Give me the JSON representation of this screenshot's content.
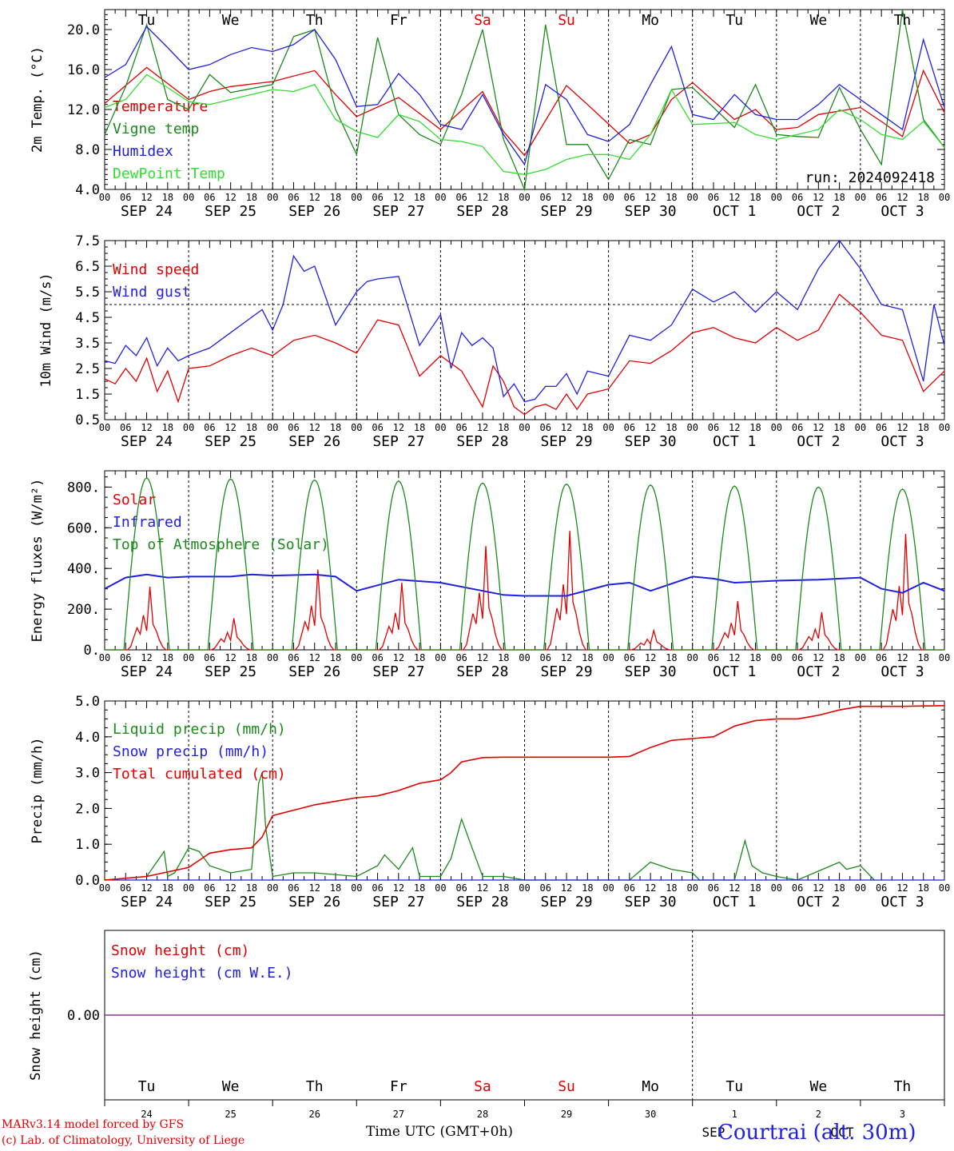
{
  "colors": {
    "red": "#e00000",
    "green": "#1a8a1a",
    "blue": "#2020e0",
    "lightgreen": "#33dd33",
    "purple": "#8030a0",
    "axis": "#000000"
  },
  "hours": [
    "00",
    "06",
    "12",
    "18"
  ],
  "days": [
    "SEP 24",
    "SEP 25",
    "SEP 26",
    "SEP 27",
    "SEP 28",
    "SEP 29",
    "SEP 30",
    "OCT  1",
    "OCT  2",
    "OCT  3"
  ],
  "final_hour": "00",
  "weekdays": [
    "Tu",
    "We",
    "Th",
    "Fr",
    "Sa",
    "Su",
    "Mo",
    "Tu",
    "We",
    "Th"
  ],
  "weekday_colors": [
    "#000000",
    "#000000",
    "#000000",
    "#000000",
    "#e00000",
    "#e00000",
    "#000000",
    "#000000",
    "#000000",
    "#000000"
  ],
  "daynums": [
    "24",
    "25",
    "26",
    "27",
    "28",
    "29",
    "30",
    "1",
    "2",
    "3"
  ],
  "footer": {
    "credit1": "MARv3.14 model forced by GFS",
    "credit2": "(c) Lab. of Climatology, University of Liege",
    "location": "Courtrai (alt. 30m)",
    "time_label": "Time UTC (GMT+0h)",
    "month1": "SEP",
    "month2": "OCT"
  },
  "chart_data": [
    {
      "type": "line",
      "ylabel": "2m Temp. (°C)",
      "ylim": [
        4.0,
        22.0
      ],
      "yticks": [
        "4.0",
        "8.0",
        "12.0",
        "16.0",
        "20.0"
      ],
      "run": "run: 2024092418",
      "series": [
        {
          "name": "Temperature",
          "color": "#e00000",
          "t": [
            0,
            12,
            24,
            30,
            36,
            48,
            60,
            66,
            72,
            84,
            96,
            108,
            114,
            120,
            132,
            138,
            150,
            156,
            162,
            168,
            180,
            186,
            192,
            198,
            204,
            216,
            222,
            228,
            234,
            240
          ],
          "v": [
            12.6,
            16.2,
            13.0,
            13.8,
            14.3,
            14.8,
            15.9,
            13.5,
            11.3,
            13.2,
            10.0,
            13.8,
            9.8,
            7.4,
            14.4,
            12.5,
            8.6,
            9.5,
            13.0,
            14.7,
            11.0,
            12.0,
            10.0,
            10.2,
            11.5,
            12.2,
            10.8,
            9.3,
            15.9,
            11.7
          ]
        },
        {
          "name": "Vigne temp",
          "color": "#1a8a1a",
          "t": [
            0,
            6,
            12,
            18,
            24,
            30,
            36,
            48,
            54,
            60,
            66,
            72,
            78,
            84,
            90,
            96,
            102,
            108,
            114,
            120,
            126,
            132,
            138,
            144,
            150,
            156,
            162,
            168,
            180,
            186,
            192,
            198,
            204,
            210,
            216,
            222,
            228,
            234,
            240
          ],
          "v": [
            9.5,
            14.3,
            20.5,
            13.0,
            12.0,
            15.5,
            13.7,
            14.5,
            19.3,
            20.0,
            12.0,
            7.5,
            19.2,
            11.5,
            9.5,
            8.5,
            13.5,
            20.0,
            9.0,
            4.0,
            20.5,
            8.5,
            8.5,
            5.0,
            9.0,
            8.5,
            14.0,
            14.2,
            10.2,
            14.5,
            9.5,
            9.3,
            9.2,
            14.2,
            10.0,
            6.5,
            22.0,
            11.0,
            8.2
          ]
        },
        {
          "name": "Humidex",
          "color": "#2020e0",
          "t": [
            0,
            6,
            12,
            18,
            24,
            30,
            36,
            42,
            48,
            54,
            60,
            66,
            72,
            78,
            84,
            90,
            96,
            102,
            108,
            114,
            120,
            126,
            132,
            138,
            144,
            150,
            156,
            162,
            168,
            174,
            180,
            186,
            192,
            198,
            204,
            210,
            216,
            222,
            228,
            234,
            240
          ],
          "v": [
            15.2,
            16.5,
            20.3,
            18.2,
            16.0,
            16.5,
            17.5,
            18.2,
            17.8,
            18.5,
            20.0,
            17.0,
            12.3,
            12.5,
            15.6,
            13.5,
            10.5,
            10.0,
            13.5,
            9.5,
            6.5,
            14.5,
            13.0,
            9.5,
            8.8,
            10.5,
            14.5,
            18.3,
            11.5,
            11.0,
            13.5,
            11.5,
            11.0,
            11.0,
            12.5,
            14.5,
            13.0,
            11.5,
            10.0,
            19.0,
            12.2
          ]
        },
        {
          "name": "DewPoint Temp",
          "color": "#33dd33",
          "t": [
            0,
            6,
            12,
            18,
            24,
            30,
            36,
            42,
            48,
            54,
            60,
            66,
            72,
            78,
            84,
            90,
            96,
            102,
            108,
            114,
            120,
            126,
            132,
            138,
            144,
            150,
            156,
            162,
            168,
            180,
            186,
            192,
            198,
            204,
            210,
            216,
            222,
            228,
            234,
            240
          ],
          "v": [
            12.2,
            13.0,
            15.5,
            14.2,
            12.8,
            12.5,
            13.0,
            13.5,
            14.0,
            13.8,
            14.5,
            11.0,
            9.8,
            9.2,
            11.5,
            10.8,
            9.0,
            8.8,
            8.3,
            5.8,
            5.5,
            6.0,
            7.0,
            7.5,
            7.5,
            7.0,
            9.5,
            14.0,
            10.5,
            10.7,
            9.5,
            9.0,
            9.5,
            10.0,
            12.0,
            11.0,
            9.5,
            9.0,
            10.8,
            8.2
          ]
        }
      ]
    },
    {
      "type": "line",
      "ylabel": "10m Wind (m/s)",
      "ylim": [
        0.5,
        7.5
      ],
      "yticks": [
        "0.5",
        "1.5",
        "2.5",
        "3.5",
        "4.5",
        "5.5",
        "6.5",
        "7.5"
      ],
      "reference_line": 5.0,
      "series": [
        {
          "name": "Wind speed",
          "color": "#e00000",
          "t": [
            0,
            3,
            6,
            9,
            12,
            15,
            18,
            21,
            24,
            30,
            36,
            42,
            48,
            54,
            60,
            66,
            72,
            78,
            84,
            90,
            96,
            102,
            108,
            111,
            114,
            117,
            120,
            123,
            126,
            129,
            132,
            135,
            138,
            144,
            150,
            156,
            162,
            168,
            174,
            180,
            186,
            192,
            198,
            204,
            210,
            216,
            222,
            228,
            234,
            240
          ],
          "v": [
            2.1,
            1.9,
            2.5,
            2.0,
            2.9,
            1.6,
            2.4,
            1.2,
            2.5,
            2.6,
            3.0,
            3.3,
            3.0,
            3.6,
            3.8,
            3.5,
            3.1,
            4.4,
            4.2,
            2.2,
            3.0,
            2.4,
            1.0,
            2.6,
            2.0,
            1.0,
            0.7,
            1.0,
            1.1,
            0.9,
            1.5,
            0.9,
            1.5,
            1.7,
            2.8,
            2.7,
            3.2,
            3.9,
            4.1,
            3.7,
            3.5,
            4.1,
            3.6,
            4.0,
            5.4,
            4.7,
            3.8,
            3.6,
            1.6,
            2.4
          ]
        },
        {
          "name": "Wind gust",
          "color": "#2020e0",
          "t": [
            0,
            3,
            6,
            9,
            12,
            15,
            18,
            21,
            24,
            30,
            36,
            42,
            45,
            48,
            51,
            54,
            57,
            60,
            66,
            72,
            75,
            78,
            84,
            90,
            96,
            99,
            102,
            105,
            108,
            111,
            114,
            117,
            120,
            123,
            126,
            129,
            132,
            135,
            138,
            144,
            150,
            156,
            162,
            168,
            174,
            180,
            186,
            192,
            198,
            204,
            210,
            216,
            222,
            228,
            234,
            237,
            240
          ],
          "v": [
            2.8,
            2.7,
            3.4,
            3.0,
            3.7,
            2.6,
            3.3,
            2.8,
            3.0,
            3.3,
            3.9,
            4.5,
            4.8,
            4.0,
            5.0,
            6.9,
            6.3,
            6.5,
            4.2,
            5.5,
            5.9,
            6.0,
            6.1,
            3.4,
            4.6,
            2.5,
            3.9,
            3.4,
            3.7,
            3.3,
            1.4,
            1.9,
            1.2,
            1.3,
            1.8,
            1.8,
            2.3,
            1.5,
            2.4,
            2.2,
            3.8,
            3.6,
            4.2,
            5.6,
            5.1,
            5.5,
            4.7,
            5.5,
            4.8,
            6.4,
            7.5,
            6.4,
            5.0,
            4.8,
            2.0,
            5.0,
            3.4
          ]
        }
      ]
    },
    {
      "type": "line",
      "ylabel": "Energy fluxes (W/m²)",
      "ylim": [
        0,
        880
      ],
      "yticks": [
        "0.",
        "200.",
        "400.",
        "600.",
        "800."
      ],
      "series": [
        {
          "name": "Solar",
          "color": "#e00000",
          "daily_peak": [
            310,
            155,
            395,
            330,
            510,
            585,
            95,
            240,
            185,
            570
          ]
        },
        {
          "name": "Infrared",
          "color": "#2020e0",
          "t": [
            0,
            6,
            12,
            18,
            24,
            30,
            36,
            42,
            48,
            60,
            66,
            72,
            84,
            96,
            108,
            114,
            120,
            132,
            144,
            150,
            156,
            168,
            174,
            180,
            192,
            204,
            216,
            222,
            228,
            234,
            240
          ],
          "v": [
            300,
            355,
            370,
            355,
            360,
            360,
            360,
            370,
            365,
            370,
            360,
            290,
            345,
            330,
            290,
            270,
            265,
            265,
            320,
            330,
            290,
            360,
            350,
            330,
            340,
            345,
            355,
            300,
            280,
            330,
            290
          ]
        },
        {
          "name": "Top of Atmosphere (Solar)",
          "color": "#1a8a1a",
          "daily_peak": [
            845,
            840,
            835,
            830,
            820,
            815,
            810,
            805,
            800,
            790
          ]
        }
      ]
    },
    {
      "type": "line",
      "ylabel": "Precip (mm/h)",
      "ylim": [
        0.0,
        5.0
      ],
      "yticks": [
        "0.0",
        "1.0",
        "2.0",
        "3.0",
        "4.0",
        "5.0"
      ],
      "series": [
        {
          "name": "Liquid precip (mm/h)",
          "color": "#1a8a1a",
          "t": [
            0,
            12,
            17,
            18,
            20,
            24,
            27,
            30,
            36,
            42,
            44,
            45,
            46,
            48,
            54,
            60,
            72,
            78,
            80,
            84,
            88,
            90,
            96,
            99,
            102,
            105,
            108,
            114,
            120,
            150,
            156,
            162,
            168,
            170,
            174,
            180,
            183,
            185,
            188,
            192,
            198,
            210,
            212,
            216,
            220
          ],
          "v": [
            0.0,
            0.1,
            0.8,
            0.1,
            0.2,
            0.9,
            0.8,
            0.4,
            0.2,
            0.3,
            2.7,
            3.0,
            1.5,
            0.1,
            0.2,
            0.2,
            0.1,
            0.4,
            0.7,
            0.3,
            0.9,
            0.1,
            0.1,
            0.6,
            1.7,
            0.9,
            0.1,
            0.1,
            0.0,
            0.0,
            0.5,
            0.3,
            0.2,
            0.0,
            0.0,
            0.0,
            1.1,
            0.4,
            0.2,
            0.1,
            0.0,
            0.5,
            0.3,
            0.4,
            0.0
          ]
        },
        {
          "name": "Snow precip (mm/h)",
          "color": "#2020e0",
          "t": [
            0,
            240
          ],
          "v": [
            0.0,
            0.0
          ]
        },
        {
          "name": "Total cumulated (cm)",
          "color": "#e00000",
          "t": [
            0,
            12,
            24,
            30,
            36,
            42,
            45,
            48,
            54,
            60,
            66,
            72,
            78,
            84,
            90,
            96,
            99,
            102,
            108,
            114,
            120,
            132,
            144,
            150,
            156,
            162,
            168,
            174,
            180,
            186,
            192,
            198,
            204,
            210,
            216,
            222,
            228,
            240
          ],
          "v": [
            0.0,
            0.1,
            0.35,
            0.75,
            0.85,
            0.9,
            1.2,
            1.8,
            1.95,
            2.1,
            2.2,
            2.3,
            2.35,
            2.5,
            2.7,
            2.8,
            3.0,
            3.3,
            3.42,
            3.43,
            3.43,
            3.43,
            3.43,
            3.45,
            3.7,
            3.9,
            3.95,
            4.0,
            4.3,
            4.45,
            4.5,
            4.5,
            4.6,
            4.75,
            4.85,
            4.85,
            4.85,
            4.87
          ]
        }
      ]
    },
    {
      "type": "line",
      "ylabel": "Snow height (cm)",
      "ylim": [
        -1.0,
        1.0
      ],
      "yticks": [
        "0.00"
      ],
      "series": [
        {
          "name": "Snow height (cm)",
          "color": "#e00000",
          "t": [
            0,
            240
          ],
          "v": [
            0.0,
            0.0
          ]
        },
        {
          "name": "Snow height (cm W.E.)",
          "color": "#2020e0",
          "t": [
            0,
            240
          ],
          "v": [
            0.0,
            0.0
          ]
        }
      ]
    }
  ]
}
